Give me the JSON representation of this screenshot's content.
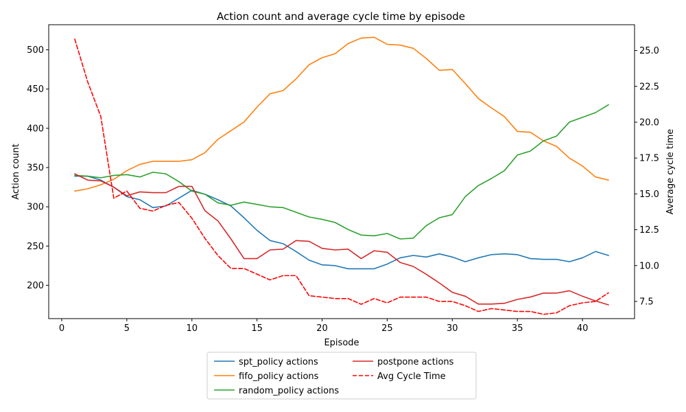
{
  "chart_data": {
    "type": "line",
    "title": "Action count and average cycle time by episode",
    "xlabel": "Episode",
    "ylabel_left": "Action count",
    "ylabel_right": "Average cycle time",
    "xlim": [
      -1,
      44
    ],
    "ylim_left": [
      157.5,
      532
    ],
    "ylim_right": [
      6.3,
      26.8
    ],
    "xticks": [
      0,
      5,
      10,
      15,
      20,
      25,
      30,
      35,
      40
    ],
    "yticks_left": [
      200,
      250,
      300,
      350,
      400,
      450,
      500
    ],
    "yticks_right": [
      "7.5",
      "10.0",
      "12.5",
      "15.0",
      "17.5",
      "20.0",
      "22.5",
      "25.0"
    ],
    "grid": false,
    "legend_position": "below-center",
    "x": [
      1,
      2,
      3,
      4,
      5,
      6,
      7,
      8,
      9,
      10,
      11,
      12,
      13,
      14,
      15,
      16,
      17,
      18,
      19,
      20,
      21,
      22,
      23,
      24,
      25,
      26,
      27,
      28,
      29,
      30,
      31,
      32,
      33,
      34,
      35,
      36,
      37,
      38,
      39,
      40,
      41,
      42
    ],
    "series": [
      {
        "name": "spt_policy actions",
        "axis": "left",
        "color": "#1f77b4",
        "dash": "solid",
        "values": [
          339,
          339,
          334,
          325,
          313,
          309,
          299,
          301,
          311,
          321,
          316,
          309,
          301,
          286,
          270,
          257,
          253,
          243,
          232,
          226,
          225,
          221,
          221,
          221,
          227,
          235,
          238,
          236,
          240,
          236,
          230,
          235,
          239,
          240,
          239,
          234,
          233,
          233,
          230,
          235,
          243,
          238
        ]
      },
      {
        "name": "fifo_policy actions",
        "axis": "left",
        "color": "#ff7f0e",
        "dash": "solid",
        "values": [
          320,
          323,
          328,
          335,
          346,
          354,
          358,
          358,
          358,
          360,
          369,
          386,
          397,
          408,
          427,
          444,
          448,
          463,
          481,
          490,
          495,
          508,
          515,
          516,
          507,
          506,
          502,
          489,
          474,
          475,
          457,
          438,
          426,
          415,
          396,
          395,
          384,
          377,
          362,
          352,
          338,
          334
        ]
      },
      {
        "name": "random_policy actions",
        "axis": "left",
        "color": "#2ca02c",
        "dash": "solid",
        "values": [
          340,
          339,
          337,
          340,
          341,
          338,
          344,
          342,
          332,
          320,
          316,
          305,
          302,
          306,
          303,
          300,
          299,
          293,
          287,
          284,
          280,
          271,
          264,
          263,
          266,
          259,
          260,
          276,
          286,
          290,
          313,
          327,
          336,
          346,
          366,
          371,
          384,
          390,
          408,
          414,
          420,
          430
        ]
      },
      {
        "name": "postpone actions",
        "axis": "left",
        "color": "#d62728",
        "dash": "solid",
        "values": [
          342,
          334,
          333,
          325,
          314,
          319,
          318,
          318,
          326,
          326,
          295,
          282,
          259,
          234,
          234,
          245,
          246,
          257,
          256,
          247,
          245,
          246,
          234,
          244,
          242,
          229,
          224,
          214,
          203,
          191,
          186,
          176,
          176,
          177,
          182,
          185,
          190,
          190,
          193,
          186,
          180,
          175
        ]
      },
      {
        "name": "Avg Cycle Time",
        "axis": "right",
        "color": "#ff0000",
        "dash": "dashed",
        "values": [
          25.8,
          22.8,
          20.4,
          14.7,
          15.2,
          14.0,
          13.8,
          14.2,
          14.4,
          13.3,
          11.9,
          10.7,
          9.8,
          9.8,
          9.4,
          9.0,
          9.3,
          9.3,
          7.9,
          7.8,
          7.7,
          7.7,
          7.3,
          7.7,
          7.4,
          7.8,
          7.8,
          7.8,
          7.5,
          7.5,
          7.2,
          6.8,
          7.0,
          6.9,
          6.8,
          6.8,
          6.6,
          6.7,
          7.2,
          7.4,
          7.5,
          8.1
        ]
      }
    ]
  }
}
